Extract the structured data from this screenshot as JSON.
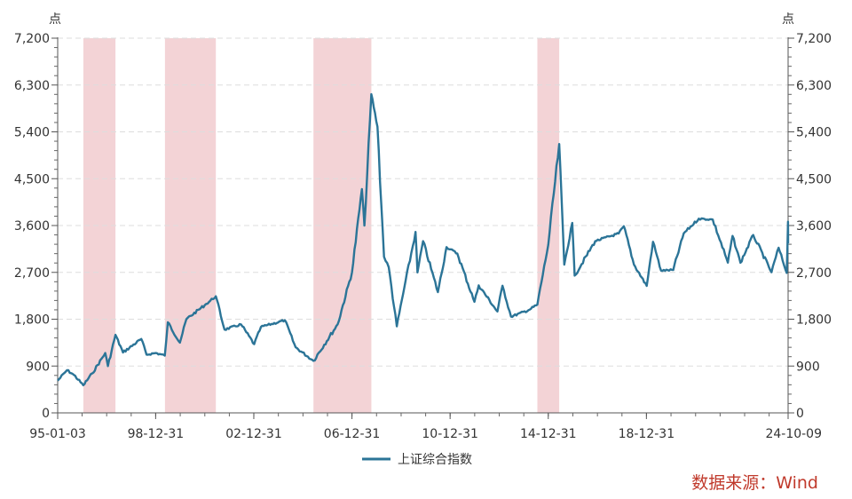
{
  "chart_data": {
    "type": "line",
    "y_unit_left": "点",
    "y_unit_right": "点",
    "ylim": [
      0,
      7200
    ],
    "y_ticks": [
      0,
      900,
      1800,
      2700,
      3600,
      4500,
      5400,
      6300,
      7200
    ],
    "y_tick_labels": [
      "0",
      "900",
      "1,800",
      "2,700",
      "3,600",
      "4,500",
      "5,400",
      "6,300",
      "7,200"
    ],
    "x_range": [
      "1995-01-03",
      "2024-10-09"
    ],
    "x_ticks": [
      {
        "date": "1995-01-03",
        "label": "95-01-03"
      },
      {
        "date": "1998-12-31",
        "label": "98-12-31"
      },
      {
        "date": "2002-12-31",
        "label": "02-12-31"
      },
      {
        "date": "2006-12-31",
        "label": "06-12-31"
      },
      {
        "date": "2010-12-31",
        "label": "10-12-31"
      },
      {
        "date": "2014-12-31",
        "label": "14-12-31"
      },
      {
        "date": "2018-12-31",
        "label": "18-12-31"
      },
      {
        "date": "2024-10-09",
        "label": "24-10-09"
      }
    ],
    "grid": "horizontal-dashed",
    "legend_position": "bottom",
    "shaded_periods": [
      {
        "start": "1996-01-20",
        "end": "1997-05-12"
      },
      {
        "start": "1999-05-19",
        "end": "2001-06-14"
      },
      {
        "start": "2005-06-06",
        "end": "2007-10-16"
      },
      {
        "start": "2014-07-22",
        "end": "2015-06-12"
      }
    ],
    "series": [
      {
        "name": "上证综合指数",
        "color": "#2b7497",
        "points": [
          [
            "1995-01-03",
            620
          ],
          [
            "1995-05-22",
            820
          ],
          [
            "1995-09-01",
            730
          ],
          [
            "1996-01-19",
            530
          ],
          [
            "1996-06-01",
            760
          ],
          [
            "1996-12-11",
            1150
          ],
          [
            "1997-01-20",
            900
          ],
          [
            "1997-05-12",
            1500
          ],
          [
            "1997-09-01",
            1160
          ],
          [
            "1998-06-01",
            1420
          ],
          [
            "1998-08-18",
            1120
          ],
          [
            "1999-01-04",
            1150
          ],
          [
            "1999-05-17",
            1100
          ],
          [
            "1999-06-30",
            1740
          ],
          [
            "1999-12-27",
            1350
          ],
          [
            "2000-04-01",
            1800
          ],
          [
            "2000-12-31",
            2070
          ],
          [
            "2001-06-14",
            2240
          ],
          [
            "2001-10-22",
            1600
          ],
          [
            "2002-06-24",
            1700
          ],
          [
            "2003-01-06",
            1320
          ],
          [
            "2003-04-16",
            1650
          ],
          [
            "2004-04-07",
            1780
          ],
          [
            "2004-09-13",
            1260
          ],
          [
            "2005-06-06",
            1000
          ],
          [
            "2006-06-01",
            1700
          ],
          [
            "2006-12-31",
            2700
          ],
          [
            "2007-05-29",
            4300
          ],
          [
            "2007-07-05",
            3600
          ],
          [
            "2007-10-16",
            6124
          ],
          [
            "2008-01-14",
            5500
          ],
          [
            "2008-04-22",
            3000
          ],
          [
            "2008-06-30",
            2800
          ],
          [
            "2008-10-28",
            1664
          ],
          [
            "2009-02-17",
            2400
          ],
          [
            "2009-08-04",
            3478
          ],
          [
            "2009-09-01",
            2700
          ],
          [
            "2009-11-24",
            3300
          ],
          [
            "2010-07-02",
            2320
          ],
          [
            "2010-11-08",
            3186
          ],
          [
            "2011-04-18",
            3060
          ],
          [
            "2011-12-28",
            2134
          ],
          [
            "2012-03-01",
            2450
          ],
          [
            "2012-12-04",
            1949
          ],
          [
            "2013-02-18",
            2444
          ],
          [
            "2013-06-25",
            1849
          ],
          [
            "2014-03-12",
            1974
          ],
          [
            "2014-07-22",
            2080
          ],
          [
            "2014-12-31",
            3234
          ],
          [
            "2015-06-12",
            5166
          ],
          [
            "2015-08-26",
            2850
          ],
          [
            "2015-12-23",
            3650
          ],
          [
            "2016-01-28",
            2638
          ],
          [
            "2016-11-29",
            3300
          ],
          [
            "2017-11-13",
            3447
          ],
          [
            "2018-01-29",
            3587
          ],
          [
            "2018-06-29",
            2850
          ],
          [
            "2019-01-04",
            2440
          ],
          [
            "2019-04-08",
            3288
          ],
          [
            "2019-08-06",
            2733
          ],
          [
            "2020-02-03",
            2746
          ],
          [
            "2020-07-09",
            3450
          ],
          [
            "2021-02-18",
            3731
          ],
          [
            "2021-09-13",
            3715
          ],
          [
            "2022-04-26",
            2886
          ],
          [
            "2022-07-05",
            3400
          ],
          [
            "2022-10-31",
            2885
          ],
          [
            "2023-05-09",
            3418
          ],
          [
            "2024-02-05",
            2702
          ],
          [
            "2024-05-20",
            3174
          ],
          [
            "2024-09-18",
            2689
          ],
          [
            "2024-10-08",
            3674
          ],
          [
            "2024-10-09",
            3258
          ]
        ]
      }
    ]
  },
  "source": {
    "text": "数据来源：Wind"
  }
}
